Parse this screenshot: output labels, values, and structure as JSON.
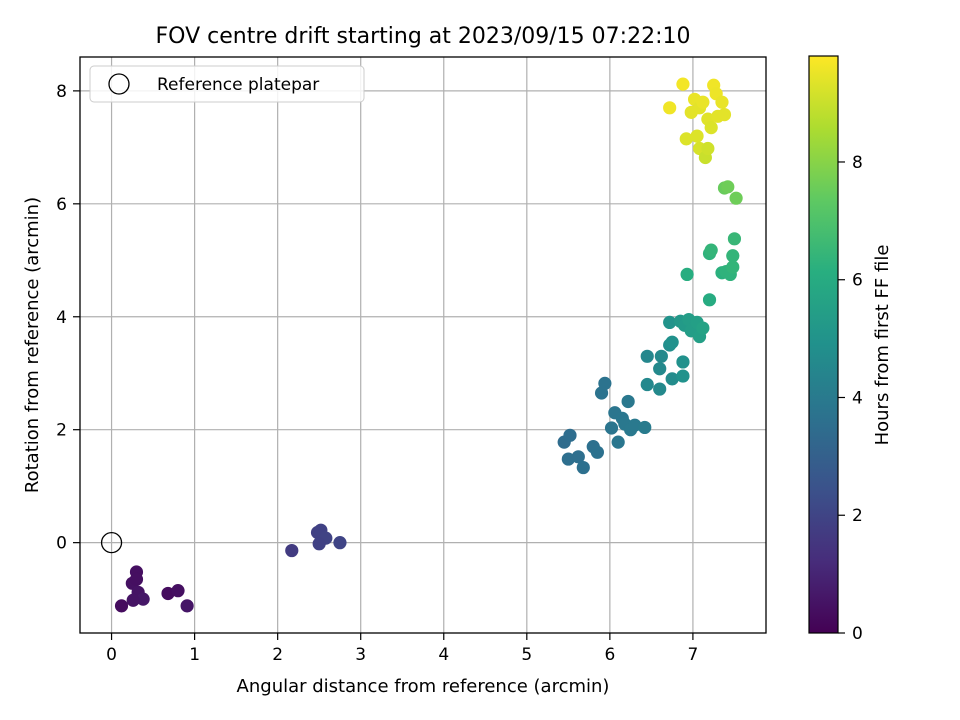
{
  "chart_data": {
    "type": "scatter",
    "title": "FOV centre drift starting at 2023/09/15 07:22:10",
    "xlabel": "Angular distance from reference (arcmin)",
    "ylabel": "Rotation from reference (arcmin)",
    "xlim": [
      -0.38,
      7.88
    ],
    "ylim": [
      -1.6,
      8.6
    ],
    "xticks": [
      0,
      1,
      2,
      3,
      4,
      5,
      6,
      7
    ],
    "yticks": [
      0,
      2,
      4,
      6,
      8
    ],
    "grid": true,
    "legend": {
      "position": "upper-left",
      "entries": [
        {
          "label": "Reference platepar",
          "marker": "open-circle"
        }
      ]
    },
    "colorbar": {
      "label": "Hours from first FF file",
      "ticks": [
        0,
        2,
        4,
        6,
        8
      ],
      "range": [
        0,
        9.8
      ],
      "colormap": "viridis"
    },
    "reference": {
      "x": 0,
      "y": 0
    },
    "series": [
      {
        "points": [
          [
            0.3,
            -0.52,
            0.4
          ],
          [
            0.25,
            -0.72,
            0.45
          ],
          [
            0.3,
            -0.65,
            0.4
          ],
          [
            0.32,
            -0.88,
            0.5
          ],
          [
            0.38,
            -1.0,
            0.6
          ],
          [
            0.26,
            -1.02,
            0.5
          ],
          [
            0.12,
            -1.12,
            0.3
          ],
          [
            0.68,
            -0.9,
            0.3
          ],
          [
            0.8,
            -0.85,
            0.4
          ],
          [
            0.91,
            -1.12,
            0.55
          ],
          [
            2.17,
            -0.14,
            1.7
          ],
          [
            2.48,
            0.18,
            1.85
          ],
          [
            2.52,
            0.22,
            1.9
          ],
          [
            2.58,
            0.08,
            1.95
          ],
          [
            2.5,
            -0.02,
            1.9
          ],
          [
            2.75,
            0.0,
            2.0
          ],
          [
            5.45,
            1.78,
            3.45
          ],
          [
            5.52,
            1.9,
            3.5
          ],
          [
            5.5,
            1.48,
            3.55
          ],
          [
            5.62,
            1.52,
            3.55
          ],
          [
            5.68,
            1.33,
            3.6
          ],
          [
            5.8,
            1.7,
            3.6
          ],
          [
            5.85,
            1.6,
            3.65
          ],
          [
            5.9,
            2.65,
            3.7
          ],
          [
            5.94,
            2.82,
            3.7
          ],
          [
            6.02,
            2.03,
            3.8
          ],
          [
            6.06,
            2.3,
            3.8
          ],
          [
            6.1,
            1.78,
            3.85
          ],
          [
            6.15,
            2.2,
            3.85
          ],
          [
            6.18,
            2.1,
            3.9
          ],
          [
            6.22,
            2.5,
            3.9
          ],
          [
            6.25,
            2.0,
            3.95
          ],
          [
            6.3,
            2.08,
            3.95
          ],
          [
            6.42,
            2.04,
            4.05
          ],
          [
            6.45,
            3.3,
            4.5
          ],
          [
            6.45,
            2.8,
            4.55
          ],
          [
            6.6,
            3.08,
            4.6
          ],
          [
            6.6,
            2.72,
            4.6
          ],
          [
            6.62,
            3.3,
            4.6
          ],
          [
            6.72,
            3.9,
            5.0
          ],
          [
            6.72,
            3.5,
            4.8
          ],
          [
            6.75,
            3.55,
            4.9
          ],
          [
            6.75,
            2.9,
            4.7
          ],
          [
            6.85,
            3.92,
            5.2
          ],
          [
            6.88,
            3.2,
            4.9
          ],
          [
            6.88,
            2.95,
            4.95
          ],
          [
            6.9,
            3.85,
            5.3
          ],
          [
            6.95,
            3.95,
            5.4
          ],
          [
            6.98,
            3.75,
            5.4
          ],
          [
            7.02,
            3.8,
            5.4
          ],
          [
            7.05,
            3.9,
            5.5
          ],
          [
            7.08,
            3.65,
            5.5
          ],
          [
            7.12,
            3.8,
            5.6
          ],
          [
            6.93,
            4.75,
            6.1
          ],
          [
            7.2,
            4.3,
            6.0
          ],
          [
            7.2,
            5.12,
            6.3
          ],
          [
            7.22,
            5.18,
            6.4
          ],
          [
            7.35,
            4.78,
            6.2
          ],
          [
            7.4,
            4.8,
            6.3
          ],
          [
            7.45,
            4.75,
            6.3
          ],
          [
            7.48,
            4.88,
            6.4
          ],
          [
            7.48,
            5.08,
            6.4
          ],
          [
            7.5,
            5.38,
            6.5
          ],
          [
            7.38,
            6.28,
            7.5
          ],
          [
            7.42,
            6.3,
            7.6
          ],
          [
            7.52,
            6.1,
            7.6
          ],
          [
            6.72,
            7.7,
            9.6
          ],
          [
            6.88,
            8.12,
            9.65
          ],
          [
            6.92,
            7.15,
            9.3
          ],
          [
            6.98,
            7.62,
            9.4
          ],
          [
            7.02,
            7.85,
            9.5
          ],
          [
            7.05,
            7.2,
            9.3
          ],
          [
            7.08,
            7.7,
            9.4
          ],
          [
            7.08,
            6.98,
            9.2
          ],
          [
            7.12,
            7.8,
            9.5
          ],
          [
            7.15,
            6.82,
            9.0
          ],
          [
            7.18,
            6.98,
            9.1
          ],
          [
            7.18,
            7.5,
            9.35
          ],
          [
            7.22,
            7.35,
            9.3
          ],
          [
            7.25,
            8.1,
            9.6
          ],
          [
            7.28,
            7.95,
            9.55
          ],
          [
            7.3,
            7.55,
            9.4
          ],
          [
            7.35,
            7.8,
            9.5
          ],
          [
            7.38,
            7.58,
            9.4
          ]
        ]
      }
    ]
  }
}
